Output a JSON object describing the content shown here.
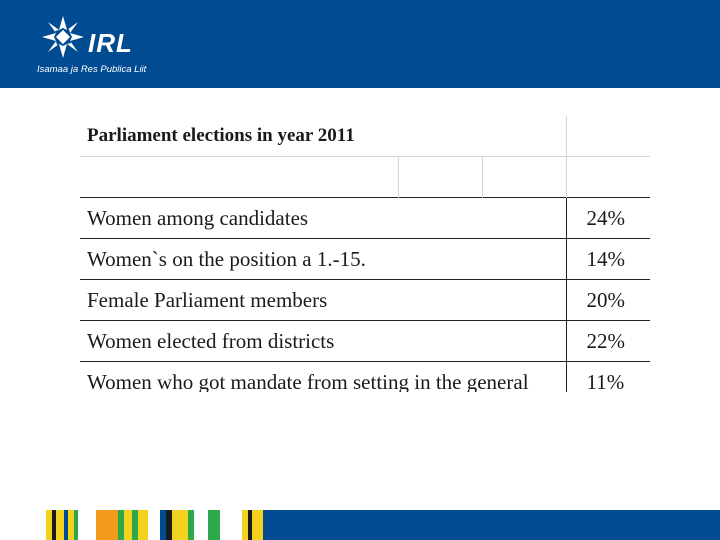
{
  "brand": {
    "name": "IRL",
    "subtitle": "Isamaa ja Res Publica Liit",
    "colors": {
      "primary": "#004b91",
      "accent_yellow": "#f2d21c",
      "accent_green": "#2ea84b",
      "accent_orange": "#f29a1c"
    }
  },
  "table": {
    "title": "Parliament elections  in year 2011",
    "rows": [
      {
        "label": "Women among candidates",
        "value": "24%"
      },
      {
        "label": "Women`s on the position a 1.-15.",
        "value": "14%"
      },
      {
        "label": "Female Parliament members",
        "value": "20%"
      },
      {
        "label": "Women elected from districts",
        "value": "22%"
      },
      {
        "label": "Women who got mandate from setting in the  general",
        "value": "11%"
      }
    ]
  },
  "footer": {
    "decoration": "color-stripes"
  }
}
